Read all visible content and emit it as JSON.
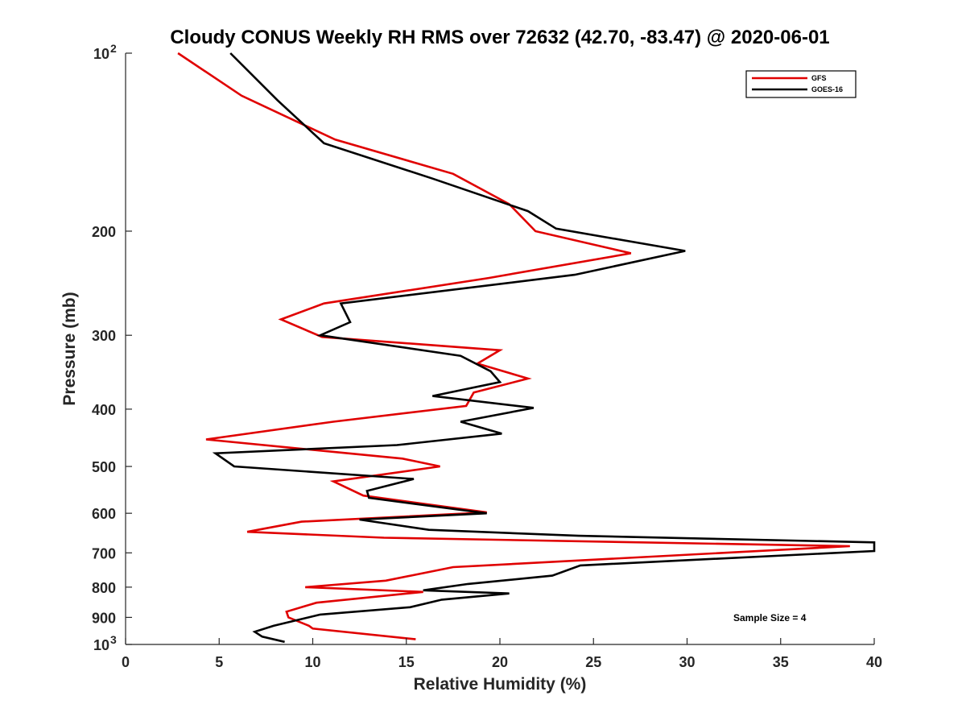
{
  "chart_data": {
    "type": "line",
    "title": "Cloudy CONUS Weekly RH RMS over 72632 (42.70, -83.47) @ 2020-06-01",
    "xlabel": "Relative Humidity (%)",
    "ylabel": "Pressure (mb)",
    "xlim": [
      0,
      40
    ],
    "ylim": [
      100,
      1000
    ],
    "y_scale": "log",
    "y_reversed": true,
    "grid": false,
    "legend_position": "top-right",
    "x_ticks": [
      "0",
      "5",
      "10",
      "15",
      "20",
      "25",
      "30",
      "35",
      "40"
    ],
    "y_ticks": [
      {
        "value": 100,
        "label": "10",
        "sup": "2"
      },
      {
        "value": 200,
        "label": "200"
      },
      {
        "value": 300,
        "label": "300"
      },
      {
        "value": 400,
        "label": "400"
      },
      {
        "value": 500,
        "label": "500"
      },
      {
        "value": 600,
        "label": "600"
      },
      {
        "value": 700,
        "label": "700"
      },
      {
        "value": 800,
        "label": "800"
      },
      {
        "value": 900,
        "label": "900"
      },
      {
        "value": 1000,
        "label": "10",
        "sup": "3"
      }
    ],
    "annotation": "Sample Size = 4",
    "series": [
      {
        "name": "GFS",
        "color": "#e00000",
        "points": [
          [
            2.8,
            100
          ],
          [
            6.2,
            118
          ],
          [
            11.2,
            140
          ],
          [
            17.5,
            160
          ],
          [
            20.5,
            180
          ],
          [
            21.9,
            200
          ],
          [
            27.0,
            218
          ],
          [
            19.4,
            240
          ],
          [
            10.6,
            265
          ],
          [
            8.3,
            282
          ],
          [
            10.5,
            302
          ],
          [
            20.0,
            318
          ],
          [
            18.8,
            335
          ],
          [
            21.5,
            355
          ],
          [
            18.6,
            375
          ],
          [
            18.2,
            395
          ],
          [
            11.1,
            420
          ],
          [
            4.3,
            450
          ],
          [
            14.8,
            485
          ],
          [
            16.8,
            500
          ],
          [
            11.1,
            530
          ],
          [
            12.7,
            560
          ],
          [
            19.3,
            598
          ],
          [
            9.4,
            620
          ],
          [
            6.5,
            645
          ],
          [
            13.8,
            660
          ],
          [
            38.7,
            682
          ],
          [
            17.5,
            740
          ],
          [
            13.9,
            780
          ],
          [
            9.6,
            800
          ],
          [
            15.9,
            815
          ],
          [
            10.2,
            850
          ],
          [
            8.6,
            880
          ],
          [
            8.7,
            900
          ],
          [
            9.8,
            930
          ],
          [
            10.0,
            940
          ],
          [
            15.5,
            980
          ]
        ]
      },
      {
        "name": "GOES-16",
        "color": "#000000",
        "points": [
          [
            5.6,
            100
          ],
          [
            8.1,
            120
          ],
          [
            10.6,
            142
          ],
          [
            16.4,
            163
          ],
          [
            21.5,
            185
          ],
          [
            23.0,
            198
          ],
          [
            29.9,
            216
          ],
          [
            24.0,
            237
          ],
          [
            11.5,
            265
          ],
          [
            12.0,
            285
          ],
          [
            10.4,
            300
          ],
          [
            17.9,
            325
          ],
          [
            19.5,
            345
          ],
          [
            20.0,
            360
          ],
          [
            16.4,
            380
          ],
          [
            21.8,
            398
          ],
          [
            17.9,
            420
          ],
          [
            20.1,
            440
          ],
          [
            14.5,
            460
          ],
          [
            4.8,
            475
          ],
          [
            5.8,
            500
          ],
          [
            15.4,
            525
          ],
          [
            12.9,
            550
          ],
          [
            13.0,
            565
          ],
          [
            19.3,
            600
          ],
          [
            12.5,
            615
          ],
          [
            16.2,
            640
          ],
          [
            24.2,
            655
          ],
          [
            40.0,
            672
          ],
          [
            40.0,
            695
          ],
          [
            24.3,
            735
          ],
          [
            22.8,
            765
          ],
          [
            18.3,
            790
          ],
          [
            15.9,
            810
          ],
          [
            20.5,
            820
          ],
          [
            16.9,
            840
          ],
          [
            15.2,
            865
          ],
          [
            10.4,
            890
          ],
          [
            7.9,
            930
          ],
          [
            6.9,
            952
          ],
          [
            7.3,
            970
          ],
          [
            8.5,
            990
          ]
        ]
      }
    ]
  }
}
